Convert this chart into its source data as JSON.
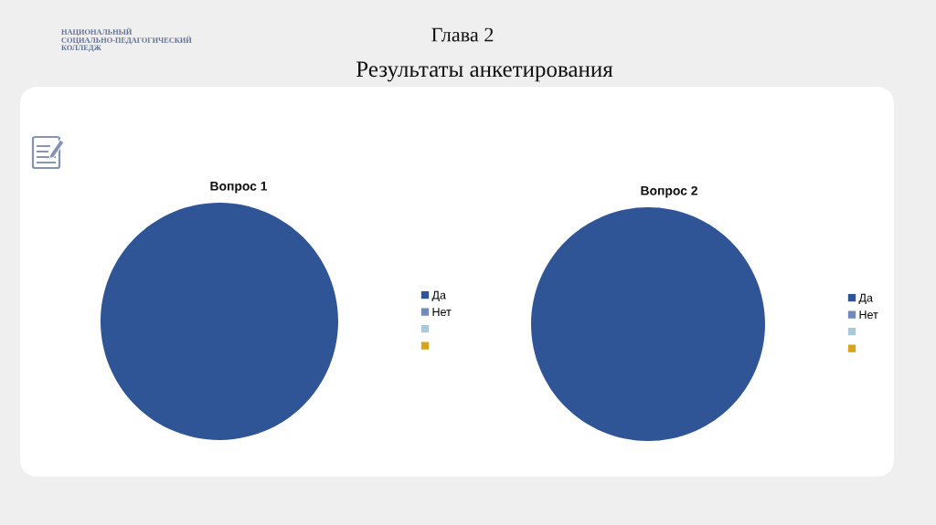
{
  "chart_data": [
    {
      "type": "other",
      "title": "Глава 2",
      "subtitle": "Результаты анкетирования",
      "annotations": [
        "НАЦИОНАЛЬНЫЙ",
        "СОЦИАЛЬНО-ПЕДАГОГИЧЕСКИЙ",
        "КОЛЛЕДЖ"
      ]
    },
    {
      "type": "pie",
      "title": "Вопрос 1",
      "categories": [
        "Да",
        "Нет",
        null,
        null
      ],
      "values": [
        100,
        0,
        0,
        0
      ],
      "colors": [
        "#2f5597",
        "#6f89bd",
        "#a9c9d6",
        "#d9a41c"
      ],
      "legend": "right"
    },
    {
      "type": "pie",
      "title": "Вопрос 2",
      "categories": [
        "Да",
        "Нет",
        null,
        null
      ],
      "values": [
        100,
        0,
        0,
        0
      ],
      "colors": [
        "#2f5597",
        "#6f89bd",
        "#a9c9d6",
        "#d9a41c"
      ],
      "legend": "right"
    }
  ]
}
